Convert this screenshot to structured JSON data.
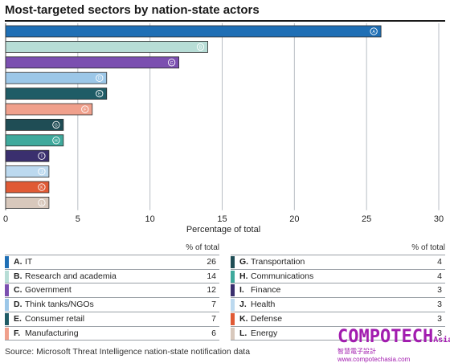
{
  "title": "Most-targeted sectors by nation-state actors",
  "chart_data": {
    "type": "bar",
    "orientation": "horizontal",
    "xlabel": "Percentage of total",
    "xlim": [
      0,
      30
    ],
    "xticks": [
      0,
      5,
      10,
      15,
      20,
      25,
      30
    ],
    "grid": "vertical",
    "categories": [
      "A",
      "B",
      "C",
      "D",
      "E",
      "F",
      "G",
      "H",
      "I",
      "J",
      "K",
      "L"
    ],
    "names": [
      "IT",
      "Research and academia",
      "Government",
      "Think tanks/NGOs",
      "Consumer retail",
      "Manufacturing",
      "Transportation",
      "Communications",
      "Finance",
      "Health",
      "Defense",
      "Energy"
    ],
    "values": [
      26,
      14,
      12,
      7,
      7,
      6,
      4,
      4,
      3,
      3,
      3,
      3
    ],
    "colors": [
      "#1f6fb5",
      "#b7ddd6",
      "#7b4fb0",
      "#9cc7e8",
      "#1f5c66",
      "#f0a08c",
      "#1f4d55",
      "#3fa99c",
      "#3a2f6e",
      "#bcd9ef",
      "#e05a35",
      "#d8c8bc"
    ]
  },
  "legend_header": "% of total",
  "source": "Source: Microsoft Threat Intelligence nation-state notification data",
  "watermark": {
    "main": "COMPOTECH",
    "suffix": "Asia",
    "sub": "智慧電子設計 www.compotechasia.com"
  }
}
